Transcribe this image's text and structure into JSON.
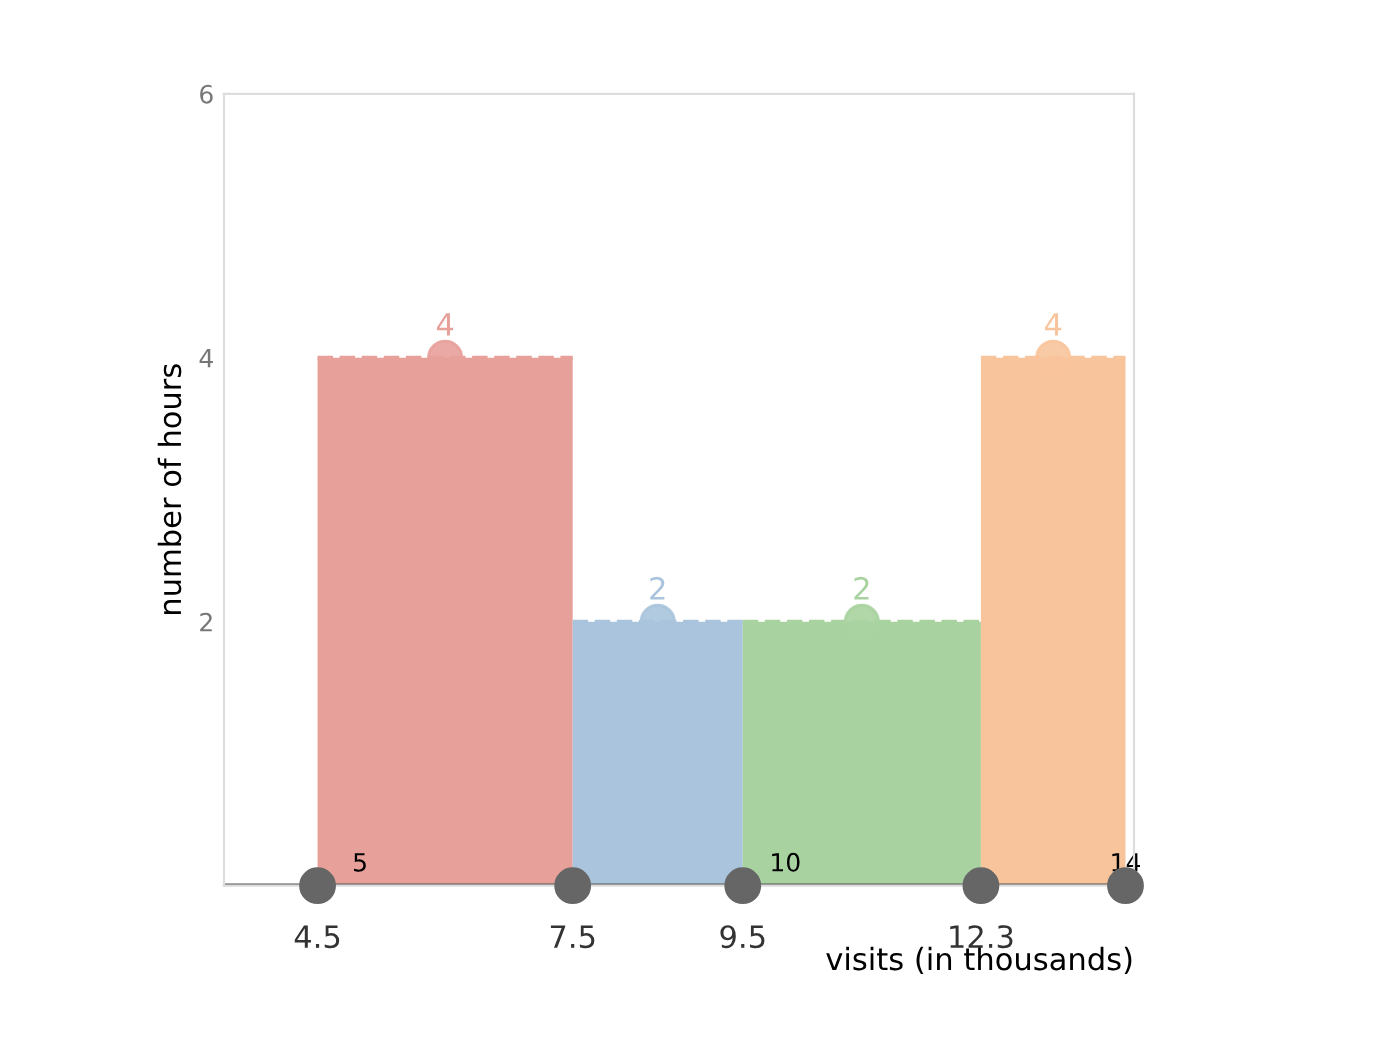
{
  "chart_data": {
    "type": "histogram",
    "xlabel": "visits (in thousands)",
    "ylabel": "number of hours",
    "bins": [
      4.5,
      7.5,
      9.5,
      12.3,
      14
    ],
    "values": [
      4,
      2,
      2,
      4
    ],
    "colors": [
      "#e8a09a",
      "#a9c4dc",
      "#a8d3a0",
      "#f8c49c"
    ],
    "xlim": [
      3.4,
      14.1
    ],
    "ylim": [
      0,
      6
    ],
    "xticks": [
      5,
      10,
      14
    ],
    "yticks": [
      2,
      4,
      6
    ],
    "data_labels": true,
    "marker": "circle",
    "line_style": "dashed",
    "grid": false,
    "annotations": [
      {
        "text": "4.5",
        "x": 4.5,
        "y": 0
      },
      {
        "text": "7.5",
        "x": 7.5,
        "y": 0
      },
      {
        "text": "9.5",
        "x": 9.5,
        "y": 0
      },
      {
        "text": "12.3",
        "x": 12.3,
        "y": 0
      }
    ]
  }
}
